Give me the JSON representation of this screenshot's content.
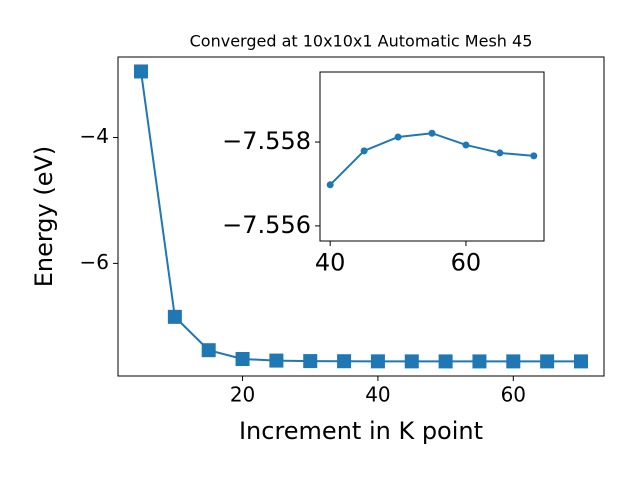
{
  "chart_data": [
    {
      "type": "line",
      "title": "Converged at 10x10x1 Automatic Mesh 45",
      "xlabel": "Increment in K point",
      "ylabel": "Energy (eV)",
      "x": [
        5,
        10,
        15,
        20,
        25,
        30,
        35,
        40,
        45,
        50,
        55,
        60,
        65,
        70
      ],
      "series": [
        {
          "color": "#1f77b4",
          "marker": "square",
          "values": [
            -2.95,
            -6.85,
            -7.38,
            -7.52,
            -7.545,
            -7.553,
            -7.555,
            -7.55698,
            -7.55779,
            -7.55812,
            -7.55821,
            -7.55793,
            -7.55774,
            -7.55767
          ]
        }
      ],
      "xlim": [
        1.6,
        73.4
      ],
      "ylim": [
        -7.79,
        -2.72
      ],
      "xticks": [
        20,
        40,
        60
      ],
      "yticks": [
        {
          "value": -4,
          "label": "−4"
        },
        {
          "value": -6,
          "label": "−6"
        }
      ]
    },
    {
      "type": "line",
      "x": [
        40,
        45,
        50,
        55,
        60,
        65,
        70
      ],
      "series": [
        {
          "color": "#1f77b4",
          "marker": "circle",
          "values": [
            -7.55698,
            -7.55779,
            -7.55812,
            -7.55821,
            -7.55793,
            -7.55774,
            -7.55767
          ]
        }
      ],
      "xlim": [
        38.5,
        71.5
      ],
      "ylim": [
        -7.55564,
        -7.55967
      ],
      "xticks": [
        40,
        60
      ],
      "yticks": [
        {
          "value": -7.558,
          "label": "−7.558"
        },
        {
          "value": -7.556,
          "label": "−7.556"
        }
      ]
    }
  ]
}
